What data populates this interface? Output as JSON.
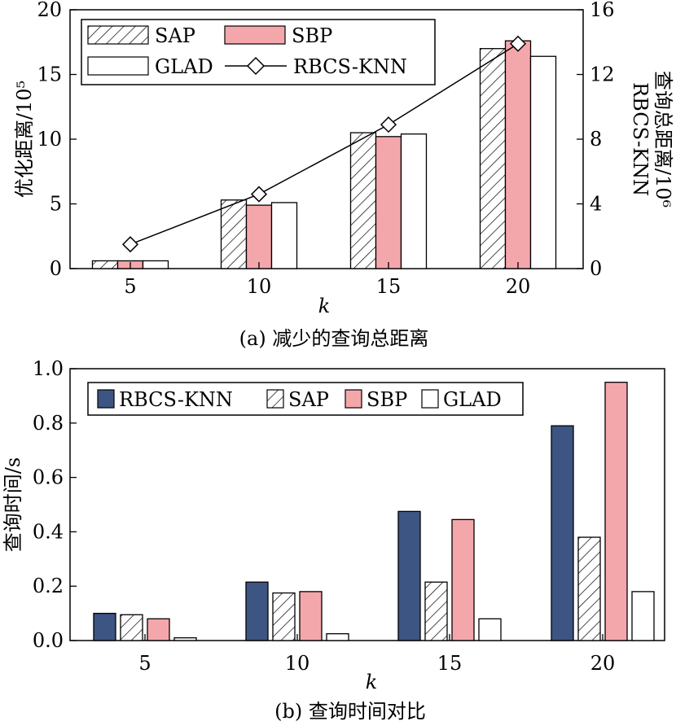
{
  "chart_data": [
    {
      "type": "bar+line",
      "caption": "(a) 减少的查询总距离",
      "xlabel": "k",
      "ylabel": "优化距离/10⁵",
      "ylabel_right": [
        "RBCS-KNN",
        "查询总距离/10⁶"
      ],
      "categories": [
        "5",
        "10",
        "15",
        "20"
      ],
      "ylim": [
        0,
        20
      ],
      "yticks": [
        "0",
        "5",
        "10",
        "15",
        "20"
      ],
      "ylim_right": [
        0,
        16
      ],
      "yticks_right": [
        "0",
        "4",
        "8",
        "12",
        "16"
      ],
      "series": [
        {
          "name": "SAP",
          "style": "hatch",
          "values": [
            0.6,
            5.3,
            10.5,
            17.0
          ]
        },
        {
          "name": "SBP",
          "style": "pink",
          "values": [
            0.6,
            4.9,
            10.2,
            17.6
          ]
        },
        {
          "name": "GLAD",
          "style": "white",
          "values": [
            0.6,
            5.1,
            10.4,
            16.4
          ]
        }
      ],
      "line_series": {
        "name": "RBCS-KNN",
        "axis": "right",
        "values": [
          1.5,
          4.6,
          8.9,
          13.9
        ]
      },
      "legend": [
        "SAP",
        "SBP",
        "GLAD",
        "RBCS-KNN"
      ]
    },
    {
      "type": "bar",
      "caption": "(b) 查询时间对比",
      "xlabel": "k",
      "ylabel": "查询时间/s",
      "categories": [
        "5",
        "10",
        "15",
        "20"
      ],
      "ylim": [
        0,
        1.0
      ],
      "yticks": [
        "0.0",
        "0.2",
        "0.4",
        "0.6",
        "0.8",
        "1.0"
      ],
      "series": [
        {
          "name": "RBCS-KNN",
          "style": "navy",
          "values": [
            0.1,
            0.215,
            0.475,
            0.79
          ]
        },
        {
          "name": "SAP",
          "style": "hatch",
          "values": [
            0.095,
            0.175,
            0.215,
            0.38
          ]
        },
        {
          "name": "SBP",
          "style": "pink",
          "values": [
            0.08,
            0.18,
            0.445,
            0.95
          ]
        },
        {
          "name": "GLAD",
          "style": "white",
          "values": [
            0.01,
            0.025,
            0.08,
            0.18
          ]
        }
      ],
      "legend": [
        "RBCS-KNN",
        "SAP",
        "SBP",
        "GLAD"
      ]
    }
  ],
  "colors": {
    "pink": "#f4a7ab",
    "navy": "#3d5582",
    "line": "#000000"
  }
}
